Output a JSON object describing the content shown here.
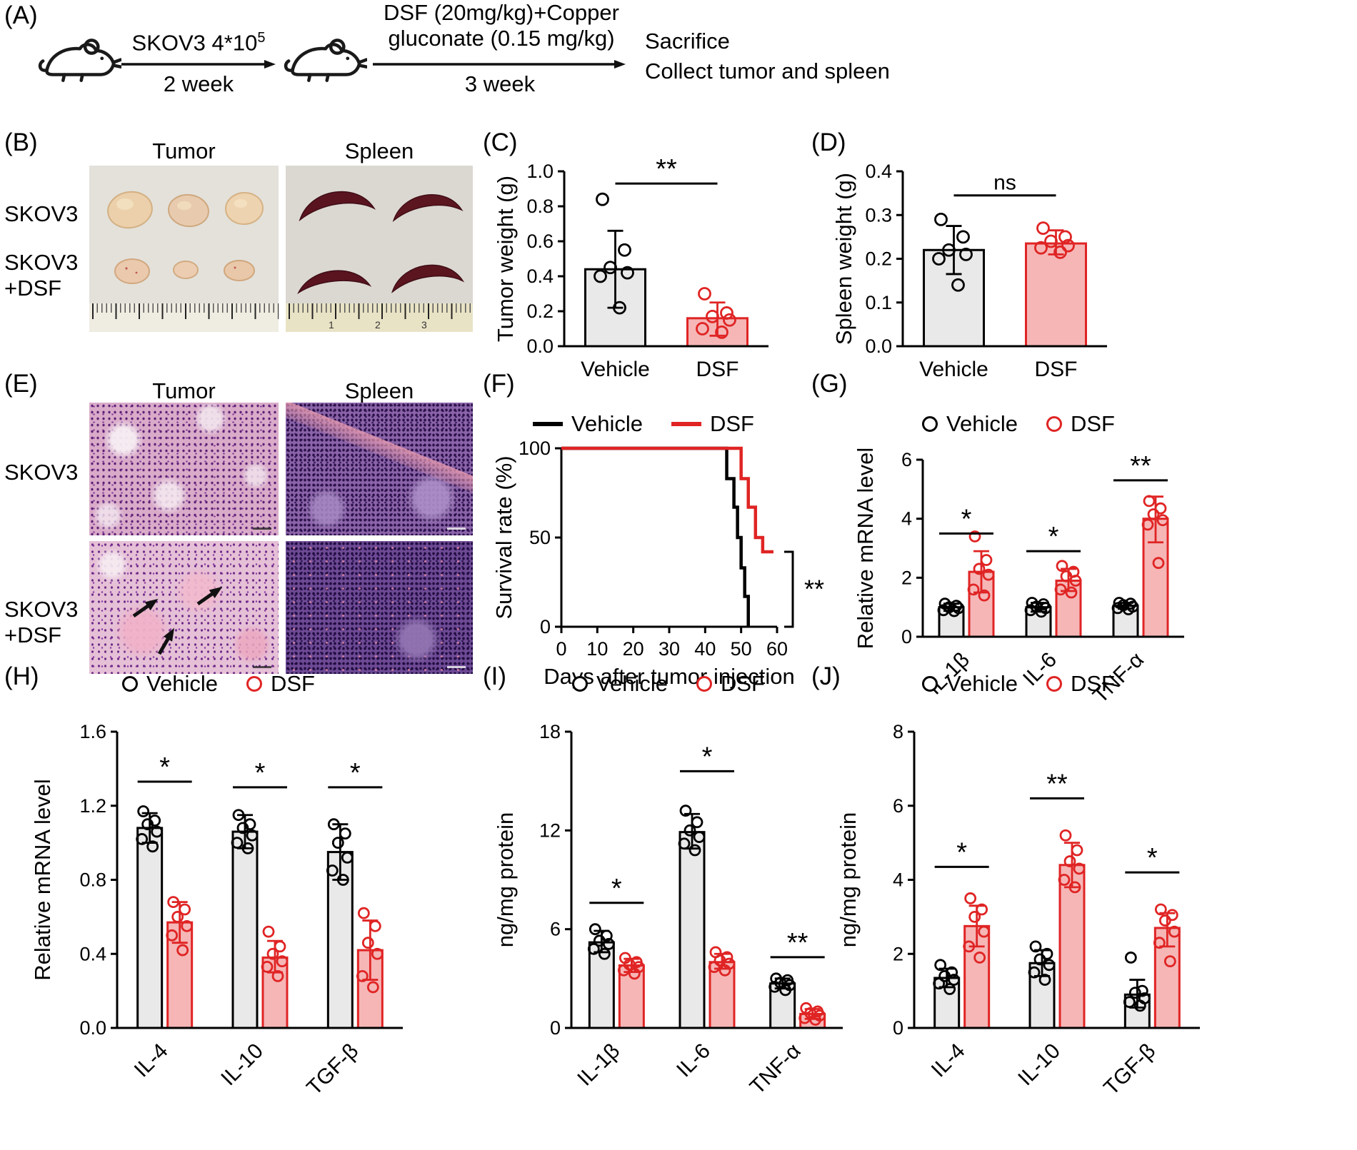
{
  "panel_labels": {
    "A": "(A)",
    "B": "(B)",
    "C": "(C)",
    "D": "(D)",
    "E": "(E)",
    "F": "(F)",
    "G": "(G)",
    "H": "(H)",
    "I": "(I)",
    "J": "(J)"
  },
  "colors": {
    "vehicle": "#000000",
    "dsf": "#e02424",
    "vehicle_bar_fill": "#e9e9e9",
    "dsf_bar_fill": "#f6b6b6"
  },
  "legend": {
    "vehicle": "Vehicle",
    "dsf": "DSF"
  },
  "panelA": {
    "inject_label": "SKOV3 4*10",
    "inject_sup": "5",
    "inject_duration": "2 week",
    "treatment_line1": "DSF (20mg/kg)+Copper",
    "treatment_line2": "gluconate (0.15 mg/kg)",
    "treatment_duration": "3 week",
    "endpoint_line1": "Sacrifice",
    "endpoint_line2": "Collect tumor and spleen"
  },
  "panelB": {
    "col_tumor": "Tumor",
    "col_spleen": "Spleen",
    "row1": "SKOV3",
    "row2_line1": "SKOV3",
    "row2_line2": "+DSF",
    "ruler_numbers": [
      "1",
      "2",
      "3"
    ]
  },
  "panelE": {
    "col_tumor": "Tumor",
    "col_spleen": "Spleen",
    "row1": "SKOV3",
    "row2_line1": "SKOV3",
    "row2_line2": "+DSF"
  },
  "chart_data": [
    {
      "panel": "C",
      "type": "bar",
      "title": "",
      "ylabel": "Tumor weight (g)",
      "ylim": [
        0,
        1.0
      ],
      "yticks": [
        0,
        0.2,
        0.4,
        0.6,
        0.8,
        1.0
      ],
      "ytick_labels": [
        "0.0",
        "0.2",
        "0.4",
        "0.6",
        "0.8",
        "1.0"
      ],
      "categories": [
        "Vehicle",
        "DSF"
      ],
      "values": [
        0.44,
        0.16
      ],
      "errors_low": [
        0.22,
        0.06
      ],
      "errors_high": [
        0.66,
        0.25
      ],
      "points": [
        [
          0.84,
          0.55,
          0.45,
          0.42,
          0.4,
          0.22
        ],
        [
          0.3,
          0.19,
          0.17,
          0.15,
          0.1,
          0.08
        ]
      ],
      "bar_fill": [
        "#e9e9e9",
        "#f6b6b6"
      ],
      "bar_stroke": [
        "#000000",
        "#e02424"
      ],
      "significance": [
        {
          "label": "**",
          "from": 0,
          "to": 1,
          "y": 0.93
        }
      ]
    },
    {
      "panel": "D",
      "type": "bar",
      "title": "",
      "ylabel": "Spleen weight (g)",
      "ylim": [
        0,
        0.4
      ],
      "yticks": [
        0,
        0.1,
        0.2,
        0.3,
        0.4
      ],
      "ytick_labels": [
        "0.0",
        "0.1",
        "0.2",
        "0.3",
        "0.4"
      ],
      "categories": [
        "Vehicle",
        "DSF"
      ],
      "values": [
        0.22,
        0.235
      ],
      "errors_low": [
        0.165,
        0.21
      ],
      "errors_high": [
        0.275,
        0.265
      ],
      "points": [
        [
          0.29,
          0.25,
          0.22,
          0.21,
          0.2,
          0.14
        ],
        [
          0.27,
          0.25,
          0.24,
          0.23,
          0.225,
          0.215
        ]
      ],
      "bar_fill": [
        "#e9e9e9",
        "#f6b6b6"
      ],
      "bar_stroke": [
        "#000000",
        "#e02424"
      ],
      "significance": [
        {
          "label": "ns",
          "from": 0,
          "to": 1,
          "y": 0.345
        }
      ]
    },
    {
      "panel": "F",
      "type": "survival",
      "ylabel": "Survival rate (%)",
      "xlabel": "Days after tumor injection",
      "ylim": [
        0,
        100
      ],
      "xlim": [
        0,
        60
      ],
      "yticks": [
        0,
        50,
        100
      ],
      "ytick_labels": [
        "0",
        "50",
        "100"
      ],
      "xticks": [
        0,
        10,
        20,
        30,
        40,
        50,
        60
      ],
      "xtick_labels": [
        "0",
        "10",
        "20",
        "30",
        "40",
        "50",
        "60"
      ],
      "series": [
        {
          "name": "Vehicle",
          "color": "#000000",
          "points": [
            [
              0,
              100
            ],
            [
              46,
              100
            ],
            [
              46,
              83
            ],
            [
              48,
              83
            ],
            [
              48,
              67
            ],
            [
              49,
              67
            ],
            [
              49,
              50
            ],
            [
              50,
              50
            ],
            [
              50,
              33
            ],
            [
              51,
              33
            ],
            [
              51,
              17
            ],
            [
              52,
              17
            ],
            [
              52,
              0
            ]
          ]
        },
        {
          "name": "DSF",
          "color": "#e02424",
          "points": [
            [
              0,
              100
            ],
            [
              50,
              100
            ],
            [
              50,
              83
            ],
            [
              52,
              83
            ],
            [
              52,
              67
            ],
            [
              54,
              67
            ],
            [
              54,
              50
            ],
            [
              56,
              50
            ],
            [
              56,
              42
            ],
            [
              59,
              42
            ]
          ]
        }
      ],
      "significance": {
        "label": "**",
        "y1": 42,
        "y2": 0
      }
    },
    {
      "panel": "G",
      "type": "grouped_bar",
      "ylabel": "Relative mRNA level",
      "ylim": [
        0,
        6
      ],
      "yticks": [
        0,
        2,
        4,
        6
      ],
      "ytick_labels": [
        "0",
        "2",
        "4",
        "6"
      ],
      "categories": [
        "IL-1β",
        "IL-6",
        "TNF-α"
      ],
      "series": [
        {
          "name": "Vehicle",
          "fill": "#e9e9e9",
          "stroke": "#000000",
          "values": [
            1.0,
            1.0,
            1.05
          ],
          "errors_low": [
            0.88,
            0.85,
            0.95
          ],
          "errors_high": [
            1.12,
            1.15,
            1.15
          ],
          "points": [
            [
              1.12,
              1.05,
              1.0,
              0.97,
              0.9,
              0.87
            ],
            [
              1.15,
              1.1,
              1.02,
              0.97,
              0.9,
              0.85
            ],
            [
              1.15,
              1.12,
              1.07,
              1.02,
              0.97,
              0.93
            ]
          ]
        },
        {
          "name": "DSF",
          "fill": "#f6b6b6",
          "stroke": "#e02424",
          "values": [
            2.2,
            1.9,
            4.0
          ],
          "errors_low": [
            1.5,
            1.55,
            3.2
          ],
          "errors_high": [
            2.9,
            2.3,
            4.75
          ],
          "points": [
            [
              3.4,
              2.6,
              2.3,
              2.1,
              1.6,
              1.4
            ],
            [
              2.4,
              2.2,
              2.05,
              1.9,
              1.6,
              1.5
            ],
            [
              4.6,
              4.35,
              4.15,
              3.95,
              3.8,
              2.5
            ]
          ]
        }
      ],
      "significance": [
        {
          "label": "*",
          "y": 3.5
        },
        {
          "label": "*",
          "y": 2.9
        },
        {
          "label": "**",
          "y": 5.3
        }
      ]
    },
    {
      "panel": "H",
      "type": "grouped_bar",
      "ylabel": "Relative mRNA level",
      "ylim": [
        0,
        1.6
      ],
      "yticks": [
        0,
        0.4,
        0.8,
        1.2,
        1.6
      ],
      "ytick_labels": [
        "0.0",
        "0.4",
        "0.8",
        "1.2",
        "1.6"
      ],
      "categories": [
        "IL-4",
        "IL-10",
        "TGF-β"
      ],
      "series": [
        {
          "name": "Vehicle",
          "fill": "#e9e9e9",
          "stroke": "#000000",
          "values": [
            1.08,
            1.06,
            0.95
          ],
          "errors_low": [
            1.0,
            0.97,
            0.8
          ],
          "errors_high": [
            1.16,
            1.15,
            1.1
          ],
          "points": [
            [
              1.17,
              1.12,
              1.1,
              1.06,
              1.02,
              0.98
            ],
            [
              1.15,
              1.1,
              1.08,
              1.04,
              1.0,
              0.97
            ],
            [
              1.1,
              1.05,
              1.0,
              0.92,
              0.85,
              0.8
            ]
          ]
        },
        {
          "name": "DSF",
          "fill": "#f6b6b6",
          "stroke": "#e02424",
          "values": [
            0.57,
            0.38,
            0.42
          ],
          "errors_low": [
            0.46,
            0.3,
            0.26
          ],
          "errors_high": [
            0.68,
            0.47,
            0.58
          ],
          "points": [
            [
              0.68,
              0.64,
              0.6,
              0.55,
              0.5,
              0.42
            ],
            [
              0.52,
              0.44,
              0.4,
              0.36,
              0.33,
              0.28
            ],
            [
              0.62,
              0.55,
              0.46,
              0.4,
              0.28,
              0.22
            ]
          ]
        }
      ],
      "significance": [
        {
          "label": "*",
          "y": 1.33
        },
        {
          "label": "*",
          "y": 1.3
        },
        {
          "label": "*",
          "y": 1.3
        }
      ]
    },
    {
      "panel": "I",
      "type": "grouped_bar",
      "ylabel": "ng/mg protein",
      "ylim": [
        0,
        18
      ],
      "yticks": [
        0,
        6,
        12,
        18
      ],
      "ytick_labels": [
        "0",
        "6",
        "12",
        "18"
      ],
      "categories": [
        "IL-1β",
        "IL-6",
        "TNF-α"
      ],
      "series": [
        {
          "name": "Vehicle",
          "fill": "#e9e9e9",
          "stroke": "#000000",
          "values": [
            5.2,
            11.9,
            2.7
          ],
          "errors_low": [
            4.6,
            10.9,
            2.4
          ],
          "errors_high": [
            5.9,
            13.0,
            3.0
          ],
          "points": [
            [
              6.0,
              5.6,
              5.3,
              5.1,
              4.8,
              4.5
            ],
            [
              13.2,
              12.5,
              12.0,
              11.6,
              11.2,
              10.8
            ],
            [
              3.0,
              2.9,
              2.75,
              2.6,
              2.5,
              2.3
            ]
          ]
        },
        {
          "name": "DSF",
          "fill": "#f6b6b6",
          "stroke": "#e02424",
          "values": [
            3.8,
            4.0,
            0.85
          ],
          "errors_low": [
            3.4,
            3.6,
            0.55
          ],
          "errors_high": [
            4.2,
            4.5,
            1.15
          ],
          "points": [
            [
              4.25,
              4.0,
              3.85,
              3.7,
              3.5,
              3.3
            ],
            [
              4.6,
              4.3,
              4.1,
              3.9,
              3.7,
              3.5
            ],
            [
              1.2,
              1.0,
              0.9,
              0.75,
              0.6,
              0.5
            ]
          ]
        }
      ],
      "significance": [
        {
          "label": "*",
          "y": 7.6
        },
        {
          "label": "*",
          "y": 15.6
        },
        {
          "label": "**",
          "y": 4.3
        }
      ]
    },
    {
      "panel": "J",
      "type": "grouped_bar",
      "ylabel": "ng/mg protein",
      "ylim": [
        0,
        8
      ],
      "yticks": [
        0,
        2,
        4,
        6,
        8
      ],
      "ytick_labels": [
        "0",
        "2",
        "4",
        "6",
        "8"
      ],
      "categories": [
        "IL-4",
        "IL-10",
        "TGF-β"
      ],
      "series": [
        {
          "name": "Vehicle",
          "fill": "#e9e9e9",
          "stroke": "#000000",
          "values": [
            1.35,
            1.75,
            0.9
          ],
          "errors_low": [
            1.1,
            1.4,
            0.55
          ],
          "errors_high": [
            1.6,
            2.1,
            1.3
          ],
          "points": [
            [
              1.7,
              1.5,
              1.4,
              1.3,
              1.2,
              1.05
            ],
            [
              2.2,
              2.0,
              1.85,
              1.7,
              1.5,
              1.3
            ],
            [
              1.9,
              1.0,
              0.95,
              0.8,
              0.7,
              0.6
            ]
          ]
        },
        {
          "name": "DSF",
          "fill": "#f6b6b6",
          "stroke": "#e02424",
          "values": [
            2.75,
            4.4,
            2.7
          ],
          "errors_low": [
            2.2,
            3.8,
            2.2
          ],
          "errors_high": [
            3.3,
            5.0,
            3.1
          ],
          "points": [
            [
              3.5,
              3.2,
              3.0,
              2.6,
              2.2,
              1.9
            ],
            [
              5.2,
              4.8,
              4.5,
              4.3,
              4.0,
              3.8
            ],
            [
              3.2,
              3.05,
              2.9,
              2.6,
              2.3,
              1.8
            ]
          ]
        }
      ],
      "significance": [
        {
          "label": "*",
          "y": 4.35
        },
        {
          "label": "**",
          "y": 6.2
        },
        {
          "label": "*",
          "y": 4.2
        }
      ]
    }
  ]
}
